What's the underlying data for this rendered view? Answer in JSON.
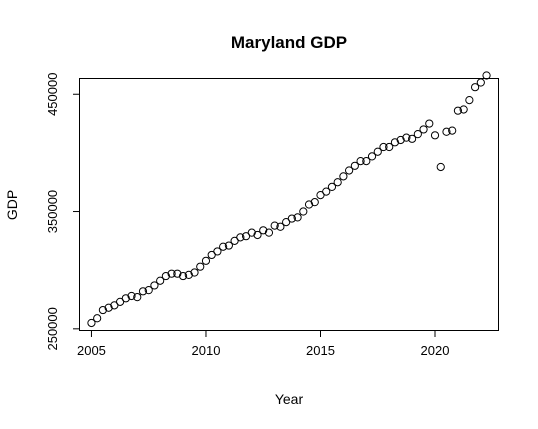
{
  "chart_data": {
    "type": "scatter",
    "title": "Maryland GDP",
    "xlabel": "Year",
    "ylabel": "GDP",
    "xlim": [
      2004.5,
      2022.75
    ],
    "ylim": [
      249000,
      463000
    ],
    "x_ticks": [
      2005,
      2010,
      2015,
      2020
    ],
    "y_ticks": [
      250000,
      350000,
      450000
    ],
    "x_tick_labels": [
      "2005",
      "2010",
      "2015",
      "2020"
    ],
    "y_tick_labels": [
      "250000",
      "350000",
      "450000"
    ],
    "grid": false,
    "legend": "none",
    "point_style": "open-circle",
    "series": [
      {
        "x": [
          2005.0,
          2005.25,
          2005.5,
          2005.75,
          2006.0,
          2006.25,
          2006.5,
          2006.75,
          2007.0,
          2007.25,
          2007.5,
          2007.75,
          2008.0,
          2008.25,
          2008.5,
          2008.75,
          2009.0,
          2009.25,
          2009.5,
          2009.75,
          2010.0,
          2010.25,
          2010.5,
          2010.75,
          2011.0,
          2011.25,
          2011.5,
          2011.75,
          2012.0,
          2012.25,
          2012.5,
          2012.75,
          2013.0,
          2013.25,
          2013.5,
          2013.75,
          2014.0,
          2014.25,
          2014.5,
          2014.75,
          2015.0,
          2015.25,
          2015.5,
          2015.75,
          2016.0,
          2016.25,
          2016.5,
          2016.75,
          2017.0,
          2017.25,
          2017.5,
          2017.75,
          2018.0,
          2018.25,
          2018.5,
          2018.75,
          2019.0,
          2019.25,
          2019.5,
          2019.75,
          2020.0,
          2020.25,
          2020.5,
          2020.75,
          2021.0,
          2021.25,
          2021.5,
          2021.75,
          2022.0,
          2022.25
        ],
        "y": [
          255000,
          259000,
          266000,
          268000,
          270000,
          273000,
          276000,
          278000,
          277000,
          282000,
          283000,
          287000,
          291000,
          295000,
          297000,
          297000,
          295000,
          296000,
          298000,
          303000,
          308000,
          313000,
          316000,
          320000,
          321000,
          325000,
          328000,
          329000,
          332000,
          330000,
          334000,
          332000,
          338000,
          337000,
          341000,
          344000,
          345000,
          350000,
          356000,
          358000,
          364000,
          367000,
          371000,
          375000,
          380000,
          385000,
          389000,
          393000,
          393000,
          397000,
          401000,
          405000,
          405000,
          409000,
          411000,
          413000,
          412000,
          416000,
          420000,
          425000,
          415000,
          388000,
          418000,
          419000,
          436000,
          437000,
          445000,
          456000,
          460000,
          466000
        ]
      }
    ]
  }
}
